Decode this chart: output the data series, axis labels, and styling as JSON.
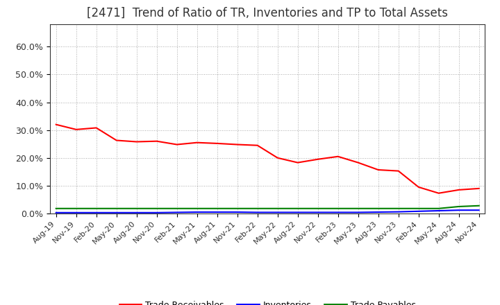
{
  "title": "[2471]  Trend of Ratio of TR, Inventories and TP to Total Assets",
  "title_fontsize": 12,
  "ylim": [
    0.0,
    0.68
  ],
  "yticks": [
    0.0,
    0.1,
    0.2,
    0.3,
    0.4,
    0.5,
    0.6
  ],
  "ytick_labels": [
    "0.0%",
    "10.0%",
    "20.0%",
    "30.0%",
    "40.0%",
    "50.0%",
    "60.0%"
  ],
  "background_color": "#ffffff",
  "grid_color": "#aaaaaa",
  "dates": [
    "Aug-19",
    "Nov-19",
    "Feb-20",
    "May-20",
    "Aug-20",
    "Nov-20",
    "Feb-21",
    "May-21",
    "Aug-21",
    "Nov-21",
    "Feb-22",
    "May-22",
    "Aug-22",
    "Nov-22",
    "Feb-23",
    "May-23",
    "Aug-23",
    "Nov-23",
    "Feb-24",
    "May-24",
    "Aug-24",
    "Nov-24"
  ],
  "trade_receivables": [
    0.32,
    0.302,
    0.308,
    0.263,
    0.258,
    0.26,
    0.248,
    0.255,
    0.252,
    0.248,
    0.245,
    0.2,
    0.183,
    0.195,
    0.205,
    0.183,
    0.157,
    0.153,
    0.095,
    0.073,
    0.085,
    0.09
  ],
  "inventories": [
    0.003,
    0.003,
    0.003,
    0.003,
    0.003,
    0.003,
    0.004,
    0.005,
    0.005,
    0.005,
    0.004,
    0.004,
    0.004,
    0.004,
    0.004,
    0.004,
    0.005,
    0.006,
    0.008,
    0.01,
    0.012,
    0.012
  ],
  "trade_payables": [
    0.018,
    0.018,
    0.018,
    0.018,
    0.018,
    0.018,
    0.018,
    0.018,
    0.018,
    0.018,
    0.018,
    0.018,
    0.018,
    0.018,
    0.018,
    0.018,
    0.018,
    0.018,
    0.018,
    0.018,
    0.025,
    0.028
  ],
  "tr_color": "#ff0000",
  "inv_color": "#0000ff",
  "tp_color": "#008000",
  "line_width": 1.5,
  "legend_labels": [
    "Trade Receivables",
    "Inventories",
    "Trade Payables"
  ]
}
